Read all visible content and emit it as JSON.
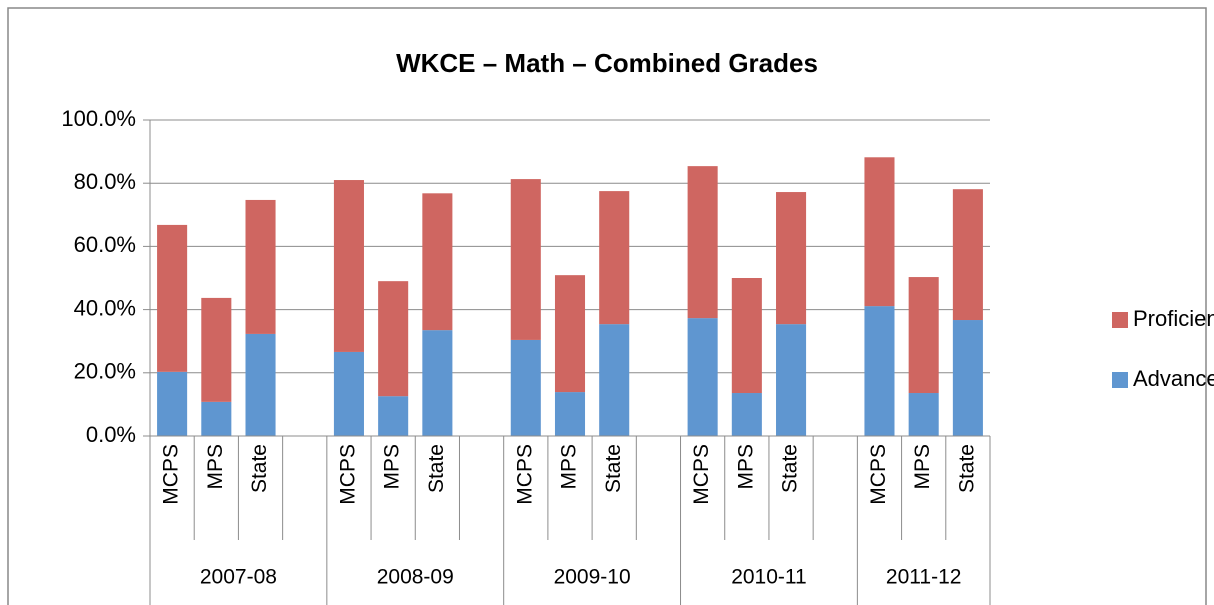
{
  "chart_data": {
    "type": "stacked_bar",
    "title": "WKCE – Math – Combined Grades",
    "categories": [
      "MCPS",
      "MPS",
      "State",
      null,
      "MCPS",
      "MPS",
      "State",
      null,
      "MCPS",
      "MPS",
      "State",
      null,
      "MCPS",
      "MPS",
      "State",
      null,
      "MCPS",
      "MPS",
      "State"
    ],
    "groups": [
      "2007-08",
      "2008-09",
      "2009-10",
      "2010-11",
      "2011-12"
    ],
    "series": [
      {
        "name": "Advanced",
        "color": "#5f96d0",
        "values": [
          20.3,
          10.8,
          32.3,
          null,
          26.6,
          12.6,
          33.5,
          null,
          30.4,
          13.9,
          35.4,
          null,
          37.3,
          13.6,
          35.4,
          null,
          41.1,
          13.6,
          36.7
        ]
      },
      {
        "name": "Proficient",
        "color": "#cf6661",
        "values": [
          46.5,
          32.9,
          42.4,
          null,
          54.4,
          36.4,
          43.3,
          null,
          50.9,
          37.0,
          42.1,
          null,
          48.1,
          36.4,
          41.8,
          null,
          47.1,
          36.7,
          41.4
        ]
      }
    ],
    "ylim": [
      0,
      100
    ],
    "yticks": [
      {
        "value": 0,
        "label": "0.0%"
      },
      {
        "value": 20,
        "label": "20.0%"
      },
      {
        "value": 40,
        "label": "40.0%"
      },
      {
        "value": 60,
        "label": "60.0%"
      },
      {
        "value": 80,
        "label": "80.0%"
      },
      {
        "value": 100,
        "label": "100.0%"
      }
    ],
    "grid": true,
    "legend": "right"
  }
}
